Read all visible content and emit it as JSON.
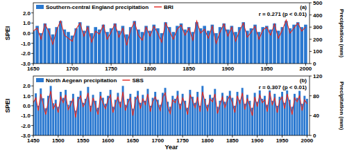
{
  "chart_data": [
    {
      "type": "bar",
      "y_label": "SPEI",
      "y2_label": "Precipitation (mm)",
      "annotations": [
        "(a)",
        "r = 0.271 (p < 0.01)"
      ],
      "legend": "top left",
      "grid": false,
      "x": [
        1650,
        1655,
        1660,
        1665,
        1670,
        1675,
        1680,
        1685,
        1690,
        1695,
        1700,
        1705,
        1710,
        1715,
        1720,
        1725,
        1730,
        1735,
        1740,
        1745,
        1750,
        1755,
        1760,
        1765,
        1770,
        1775,
        1780,
        1785,
        1790,
        1795,
        1800,
        1805,
        1810,
        1815,
        1820,
        1825,
        1830,
        1835,
        1840,
        1845,
        1850,
        1855,
        1860,
        1865,
        1870,
        1875,
        1880,
        1885,
        1890,
        1895,
        1900,
        1905,
        1910,
        1915,
        1920,
        1925,
        1930,
        1935,
        1940,
        1945,
        1950,
        1955,
        1960,
        1965,
        1970,
        1975,
        1980,
        1985,
        1990,
        1995,
        2000
      ],
      "xlim": [
        1650,
        2005
      ],
      "xticks": [
        1650,
        1700,
        1750,
        1800,
        1850,
        1900,
        1950,
        2000
      ],
      "ylim": [
        -3,
        3
      ],
      "yticks": [
        {
          "value": -3,
          "label": "-3.0"
        },
        {
          "value": -2,
          "label": "-2.0"
        },
        {
          "value": -1,
          "label": "-1.0"
        },
        {
          "value": 0,
          "label": "0.0"
        },
        {
          "value": 1,
          "label": "1.0"
        },
        {
          "value": 2,
          "label": "2.0"
        }
      ],
      "y2lim": [
        0,
        500
      ],
      "y2ticks": [
        0,
        100,
        200,
        300,
        400,
        500
      ],
      "series": [
        {
          "name": "Southern-central England precipitation",
          "type": "bar",
          "axis": "y2",
          "color": "#2a78d0",
          "values": [
            270,
            310,
            250,
            330,
            290,
            240,
            300,
            350,
            280,
            260,
            230,
            290,
            340,
            270,
            310,
            250,
            300,
            280,
            320,
            260,
            290,
            330,
            270,
            310,
            240,
            300,
            350,
            280,
            260,
            310,
            270,
            320,
            290,
            250,
            340,
            300,
            260,
            310,
            330,
            280,
            300,
            260,
            340,
            290,
            310,
            270,
            320,
            250,
            300,
            330,
            280,
            310,
            260,
            300,
            340,
            270,
            290,
            320,
            260,
            300,
            310,
            280,
            330,
            270,
            300,
            350,
            290,
            320,
            340,
            300,
            320
          ]
        },
        {
          "name": "BRI",
          "type": "line",
          "color": "#e3261f",
          "values": [
            0.2,
            0.5,
            -0.6,
            0.9,
            0.1,
            -1.1,
            0.3,
            1.2,
            -0.2,
            -0.5,
            -0.8,
            0.4,
            1.0,
            -0.3,
            0.6,
            -0.9,
            0.2,
            -0.1,
            0.8,
            -0.6,
            0.1,
            0.9,
            -0.4,
            0.5,
            -1.2,
            0.3,
            1.1,
            -0.2,
            -0.7,
            0.6,
            -0.3,
            0.7,
            0.0,
            -0.9,
            1.0,
            0.2,
            -0.6,
            0.4,
            0.8,
            -0.2,
            0.5,
            -0.7,
            1.2,
            0.0,
            0.4,
            -0.5,
            0.7,
            -1.0,
            0.1,
            0.9,
            -0.3,
            0.6,
            -0.8,
            0.2,
            1.0,
            -0.4,
            0.1,
            0.7,
            -0.6,
            0.3,
            0.6,
            -0.2,
            0.9,
            -0.5,
            0.3,
            1.3,
            0.0,
            0.5,
            1.0,
            0.2,
            0.6
          ]
        }
      ]
    },
    {
      "type": "bar",
      "x_label": "Year",
      "y_label": "SPEI",
      "y2_label": "Precipitation (mm)",
      "annotations": [
        "(b)",
        "r = 0.307 (p < 0.01)"
      ],
      "legend": "top left",
      "grid": false,
      "x": [
        1450,
        1455,
        1460,
        1465,
        1470,
        1475,
        1480,
        1485,
        1490,
        1495,
        1500,
        1505,
        1510,
        1515,
        1520,
        1525,
        1530,
        1535,
        1540,
        1545,
        1550,
        1555,
        1560,
        1565,
        1570,
        1575,
        1580,
        1585,
        1590,
        1595,
        1600,
        1605,
        1610,
        1615,
        1620,
        1625,
        1630,
        1635,
        1640,
        1645,
        1650,
        1655,
        1660,
        1665,
        1670,
        1675,
        1680,
        1685,
        1690,
        1695,
        1700,
        1705,
        1710,
        1715,
        1720,
        1725,
        1730,
        1735,
        1740,
        1745,
        1750,
        1755,
        1760,
        1765,
        1770,
        1775,
        1780,
        1785,
        1790,
        1795,
        1800,
        1805,
        1810,
        1815,
        1820,
        1825,
        1830,
        1835,
        1840,
        1845,
        1850,
        1855,
        1860,
        1865,
        1870,
        1875,
        1880,
        1885,
        1890,
        1895,
        1900,
        1905,
        1910,
        1915,
        1920,
        1925,
        1930,
        1935,
        1940,
        1945,
        1950,
        1955,
        1960,
        1965,
        1970,
        1975,
        1980,
        1985,
        1990,
        1995,
        2000
      ],
      "xlim": [
        1450,
        2005
      ],
      "xticks": [
        1450,
        1500,
        1550,
        1600,
        1650,
        1700,
        1750,
        1800,
        1850,
        1900,
        1950,
        2000
      ],
      "ylim": [
        -3,
        3
      ],
      "yticks": [
        {
          "value": -3,
          "label": "-3.0"
        },
        {
          "value": -2,
          "label": "-2.0"
        },
        {
          "value": -1,
          "label": "-1.0"
        },
        {
          "value": 0,
          "label": "0.0"
        },
        {
          "value": 1,
          "label": "1.0"
        },
        {
          "value": 2,
          "label": "2.0"
        }
      ],
      "y2lim": [
        0,
        120
      ],
      "y2ticks": [
        0,
        40,
        80,
        120
      ],
      "series": [
        {
          "name": "North Aegean precipitation",
          "type": "bar",
          "axis": "y2",
          "color": "#2a78d0",
          "values": [
            70,
            85,
            60,
            95,
            75,
            55,
            80,
            100,
            65,
            72,
            58,
            88,
            76,
            92,
            62,
            70,
            84,
            50,
            78,
            90,
            66,
            74,
            98,
            60,
            82,
            70,
            56,
            88,
            76,
            64,
            80,
            92,
            58,
            72,
            86,
            68,
            100,
            62,
            74,
            84,
            54,
            78,
            90,
            66,
            82,
            70,
            94,
            60,
            76,
            88,
            72,
            62,
            86,
            96,
            68,
            58,
            80,
            74,
            90,
            64,
            84,
            70,
            56,
            92,
            78,
            66,
            88,
            60,
            100,
            74,
            62,
            82,
            76,
            94,
            58,
            70,
            86,
            68,
            80,
            90,
            76,
            60,
            88,
            72,
            96,
            64,
            82,
            70,
            56,
            86,
            68,
            92,
            74,
            80,
            62,
            98,
            70,
            84,
            60,
            78,
            88,
            66,
            94,
            72,
            58,
            84,
            76,
            90,
            64,
            80,
            74
          ]
        },
        {
          "name": "SBS",
          "type": "line",
          "color": "#e3261f",
          "values": [
            0.3,
            0.8,
            -0.5,
            1.2,
            0.1,
            -0.9,
            0.4,
            1.5,
            -0.3,
            0.2,
            -0.7,
            0.9,
            0.3,
            1.1,
            -0.4,
            0.1,
            0.7,
            -1.2,
            0.5,
            1.0,
            -0.1,
            0.4,
            1.3,
            -0.6,
            0.8,
            0.0,
            -0.9,
            1.0,
            0.3,
            -0.3,
            0.6,
            1.1,
            -0.7,
            0.2,
            0.9,
            -0.2,
            1.4,
            -0.5,
            0.3,
            0.8,
            -1.0,
            0.5,
            1.0,
            -0.3,
            0.7,
            0.1,
            1.2,
            -0.6,
            0.4,
            0.9,
            0.2,
            -0.5,
            0.8,
            1.3,
            -0.1,
            -0.8,
            0.6,
            0.3,
            1.0,
            -0.4,
            0.8,
            0.1,
            -0.9,
            1.1,
            0.5,
            -0.2,
            0.9,
            -0.6,
            1.4,
            0.3,
            -0.5,
            0.7,
            0.4,
            1.2,
            -0.8,
            0.1,
            0.9,
            -0.2,
            0.6,
            1.0,
            0.3,
            -0.7,
            1.0,
            0.2,
            1.3,
            -0.4,
            0.7,
            0.0,
            -1.0,
            0.9,
            -0.1,
            1.1,
            0.3,
            0.6,
            -0.6,
            1.4,
            0.1,
            0.8,
            -0.7,
            0.5,
            0.9,
            -0.3,
            1.2,
            0.2,
            -0.9,
            0.8,
            0.4,
            1.0,
            -0.5,
            0.6,
            0.2
          ]
        }
      ]
    }
  ]
}
